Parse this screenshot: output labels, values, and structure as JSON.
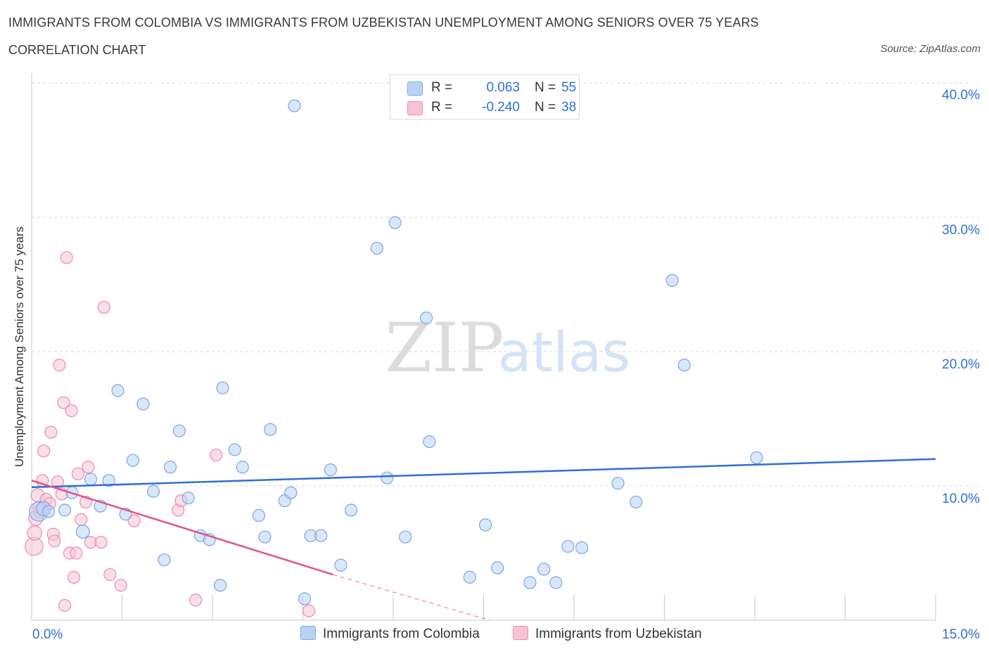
{
  "header": {
    "title": "IMMIGRANTS FROM COLOMBIA VS IMMIGRANTS FROM UZBEKISTAN UNEMPLOYMENT AMONG SENIORS OVER 75 YEARS",
    "subtitle": "CORRELATION CHART",
    "source": "Source: ZipAtlas.com"
  },
  "legend": {
    "rows": [
      {
        "r_label": "R =",
        "r_value": "0.063",
        "n_label": "N =",
        "n_value": "55"
      },
      {
        "r_label": "R =",
        "r_value": "-0.240",
        "n_label": "N =",
        "n_value": "38"
      }
    ]
  },
  "bottom_legend": {
    "colombia": "Immigrants from Colombia",
    "uzbekistan": "Immigrants from Uzbekistan"
  },
  "watermark": {
    "zip": "ZIP",
    "atlas": "atlas"
  },
  "colors": {
    "blue_fill": "#b9d3f5",
    "blue_stroke": "#7aa6e0",
    "blue_line": "#2f6fd6",
    "pink_fill": "#f7c3d3",
    "pink_stroke": "#e88fab",
    "pink_line": "#e0548a",
    "axis_text": "#2f6fd6",
    "grid": "#d9d9d9"
  },
  "chart_data": {
    "type": "scatter",
    "title": "IMMIGRANTS FROM COLOMBIA VS IMMIGRANTS FROM UZBEKISTAN UNEMPLOYMENT AMONG SENIORS OVER 75 YEARS",
    "xlabel": "",
    "ylabel": "Unemployment Among Seniors over 75 years",
    "xlim": [
      0,
      15
    ],
    "ylim": [
      0,
      40
    ],
    "x_tick_labels": [
      {
        "value": 0,
        "label": "0.0%"
      },
      {
        "value": 15,
        "label": "15.0%"
      }
    ],
    "x_minor_ticks": [
      1.5,
      3.0,
      4.5,
      6.0,
      7.5,
      9.0,
      10.5,
      12.0,
      13.5
    ],
    "y_ticks": [
      {
        "value": 10,
        "label": "10.0%"
      },
      {
        "value": 20,
        "label": "20.0%"
      },
      {
        "value": 30,
        "label": "30.0%"
      },
      {
        "value": 40,
        "label": "40.0%"
      }
    ],
    "series": [
      {
        "name": "Immigrants from Colombia",
        "color": "blue",
        "R": 0.063,
        "N": 55,
        "trend": {
          "x": [
            0,
            15
          ],
          "y": [
            9.9,
            12.0
          ],
          "dashed_extension": false
        },
        "points": [
          {
            "x": 0.12,
            "y": 8.1,
            "s": 1.6
          },
          {
            "x": 0.2,
            "y": 8.3,
            "s": 1.2
          },
          {
            "x": 0.28,
            "y": 8.1,
            "s": 1.0
          },
          {
            "x": 0.55,
            "y": 8.2,
            "s": 1
          },
          {
            "x": 0.67,
            "y": 9.5,
            "s": 1
          },
          {
            "x": 0.85,
            "y": 6.6,
            "s": 1.1
          },
          {
            "x": 0.98,
            "y": 10.5,
            "s": 1
          },
          {
            "x": 1.14,
            "y": 8.5,
            "s": 1
          },
          {
            "x": 1.28,
            "y": 10.4,
            "s": 1
          },
          {
            "x": 1.43,
            "y": 17.1,
            "s": 1
          },
          {
            "x": 1.56,
            "y": 7.9,
            "s": 1
          },
          {
            "x": 1.68,
            "y": 11.9,
            "s": 1
          },
          {
            "x": 1.85,
            "y": 16.1,
            "s": 1
          },
          {
            "x": 2.02,
            "y": 9.6,
            "s": 1
          },
          {
            "x": 2.2,
            "y": 4.5,
            "s": 1
          },
          {
            "x": 2.3,
            "y": 11.4,
            "s": 1
          },
          {
            "x": 2.45,
            "y": 14.1,
            "s": 1
          },
          {
            "x": 2.6,
            "y": 9.1,
            "s": 1
          },
          {
            "x": 2.8,
            "y": 6.3,
            "s": 1
          },
          {
            "x": 2.95,
            "y": 6.0,
            "s": 1
          },
          {
            "x": 3.13,
            "y": 2.6,
            "s": 1
          },
          {
            "x": 3.17,
            "y": 17.3,
            "s": 1
          },
          {
            "x": 3.37,
            "y": 12.7,
            "s": 1
          },
          {
            "x": 3.5,
            "y": 11.4,
            "s": 1
          },
          {
            "x": 3.77,
            "y": 7.8,
            "s": 1
          },
          {
            "x": 3.87,
            "y": 6.2,
            "s": 1
          },
          {
            "x": 3.96,
            "y": 14.2,
            "s": 1
          },
          {
            "x": 4.2,
            "y": 8.9,
            "s": 1
          },
          {
            "x": 4.3,
            "y": 9.5,
            "s": 1
          },
          {
            "x": 4.36,
            "y": 38.3,
            "s": 1
          },
          {
            "x": 4.53,
            "y": 1.6,
            "s": 1
          },
          {
            "x": 4.63,
            "y": 6.3,
            "s": 1
          },
          {
            "x": 4.8,
            "y": 6.3,
            "s": 1
          },
          {
            "x": 4.96,
            "y": 11.2,
            "s": 1
          },
          {
            "x": 5.13,
            "y": 4.1,
            "s": 1
          },
          {
            "x": 5.3,
            "y": 8.2,
            "s": 1
          },
          {
            "x": 5.73,
            "y": 27.7,
            "s": 1
          },
          {
            "x": 5.9,
            "y": 10.6,
            "s": 1
          },
          {
            "x": 6.03,
            "y": 29.6,
            "s": 1
          },
          {
            "x": 6.2,
            "y": 6.2,
            "s": 1
          },
          {
            "x": 6.55,
            "y": 22.5,
            "s": 1
          },
          {
            "x": 6.6,
            "y": 13.3,
            "s": 1
          },
          {
            "x": 7.27,
            "y": 3.2,
            "s": 1
          },
          {
            "x": 7.53,
            "y": 7.1,
            "s": 1
          },
          {
            "x": 7.73,
            "y": 3.9,
            "s": 1
          },
          {
            "x": 8.27,
            "y": 2.8,
            "s": 1
          },
          {
            "x": 8.5,
            "y": 3.8,
            "s": 1
          },
          {
            "x": 8.7,
            "y": 2.8,
            "s": 1
          },
          {
            "x": 8.9,
            "y": 5.5,
            "s": 1
          },
          {
            "x": 9.13,
            "y": 5.4,
            "s": 1
          },
          {
            "x": 9.73,
            "y": 10.2,
            "s": 1
          },
          {
            "x": 10.03,
            "y": 8.8,
            "s": 1
          },
          {
            "x": 10.63,
            "y": 25.3,
            "s": 1
          },
          {
            "x": 10.83,
            "y": 19.0,
            "s": 1
          },
          {
            "x": 12.03,
            "y": 12.1,
            "s": 1
          }
        ]
      },
      {
        "name": "Immigrants from Uzbekistan",
        "color": "pink",
        "R": -0.24,
        "N": 38,
        "trend": {
          "x": [
            0,
            5.0
          ],
          "y": [
            10.4,
            3.4
          ],
          "dashed_extension": true,
          "dash_to": {
            "x": 7.6,
            "y": 0
          }
        },
        "points": [
          {
            "x": 0.04,
            "y": 5.5,
            "s": 1.5
          },
          {
            "x": 0.05,
            "y": 6.5,
            "s": 1.2
          },
          {
            "x": 0.07,
            "y": 7.6,
            "s": 1.2
          },
          {
            "x": 0.1,
            "y": 9.3,
            "s": 1.1
          },
          {
            "x": 0.14,
            "y": 8.1,
            "s": 1.1
          },
          {
            "x": 0.18,
            "y": 10.4,
            "s": 1
          },
          {
            "x": 0.2,
            "y": 12.6,
            "s": 1
          },
          {
            "x": 0.24,
            "y": 9.0,
            "s": 1
          },
          {
            "x": 0.3,
            "y": 8.7,
            "s": 1
          },
          {
            "x": 0.32,
            "y": 14.0,
            "s": 1
          },
          {
            "x": 0.36,
            "y": 6.4,
            "s": 1
          },
          {
            "x": 0.38,
            "y": 5.9,
            "s": 1
          },
          {
            "x": 0.43,
            "y": 10.3,
            "s": 1
          },
          {
            "x": 0.46,
            "y": 19.0,
            "s": 1
          },
          {
            "x": 0.5,
            "y": 9.4,
            "s": 1
          },
          {
            "x": 0.53,
            "y": 16.2,
            "s": 1
          },
          {
            "x": 0.55,
            "y": 1.1,
            "s": 1
          },
          {
            "x": 0.58,
            "y": 27.0,
            "s": 1
          },
          {
            "x": 0.63,
            "y": 5.0,
            "s": 1
          },
          {
            "x": 0.66,
            "y": 15.6,
            "s": 1
          },
          {
            "x": 0.7,
            "y": 3.2,
            "s": 1
          },
          {
            "x": 0.74,
            "y": 5.0,
            "s": 1
          },
          {
            "x": 0.77,
            "y": 10.9,
            "s": 1
          },
          {
            "x": 0.82,
            "y": 7.5,
            "s": 1
          },
          {
            "x": 0.9,
            "y": 8.8,
            "s": 1
          },
          {
            "x": 0.94,
            "y": 11.4,
            "s": 1
          },
          {
            "x": 0.98,
            "y": 5.8,
            "s": 1
          },
          {
            "x": 1.15,
            "y": 5.8,
            "s": 1
          },
          {
            "x": 1.2,
            "y": 23.3,
            "s": 1
          },
          {
            "x": 1.3,
            "y": 3.4,
            "s": 1
          },
          {
            "x": 1.48,
            "y": 2.6,
            "s": 1
          },
          {
            "x": 1.7,
            "y": 7.4,
            "s": 1
          },
          {
            "x": 2.43,
            "y": 8.2,
            "s": 1
          },
          {
            "x": 2.48,
            "y": 8.9,
            "s": 1
          },
          {
            "x": 2.72,
            "y": 1.5,
            "s": 1
          },
          {
            "x": 3.06,
            "y": 12.3,
            "s": 1
          },
          {
            "x": 4.6,
            "y": 0.7,
            "s": 1
          },
          {
            "x": 0.12,
            "y": 8.4,
            "s": 1
          }
        ]
      }
    ]
  }
}
